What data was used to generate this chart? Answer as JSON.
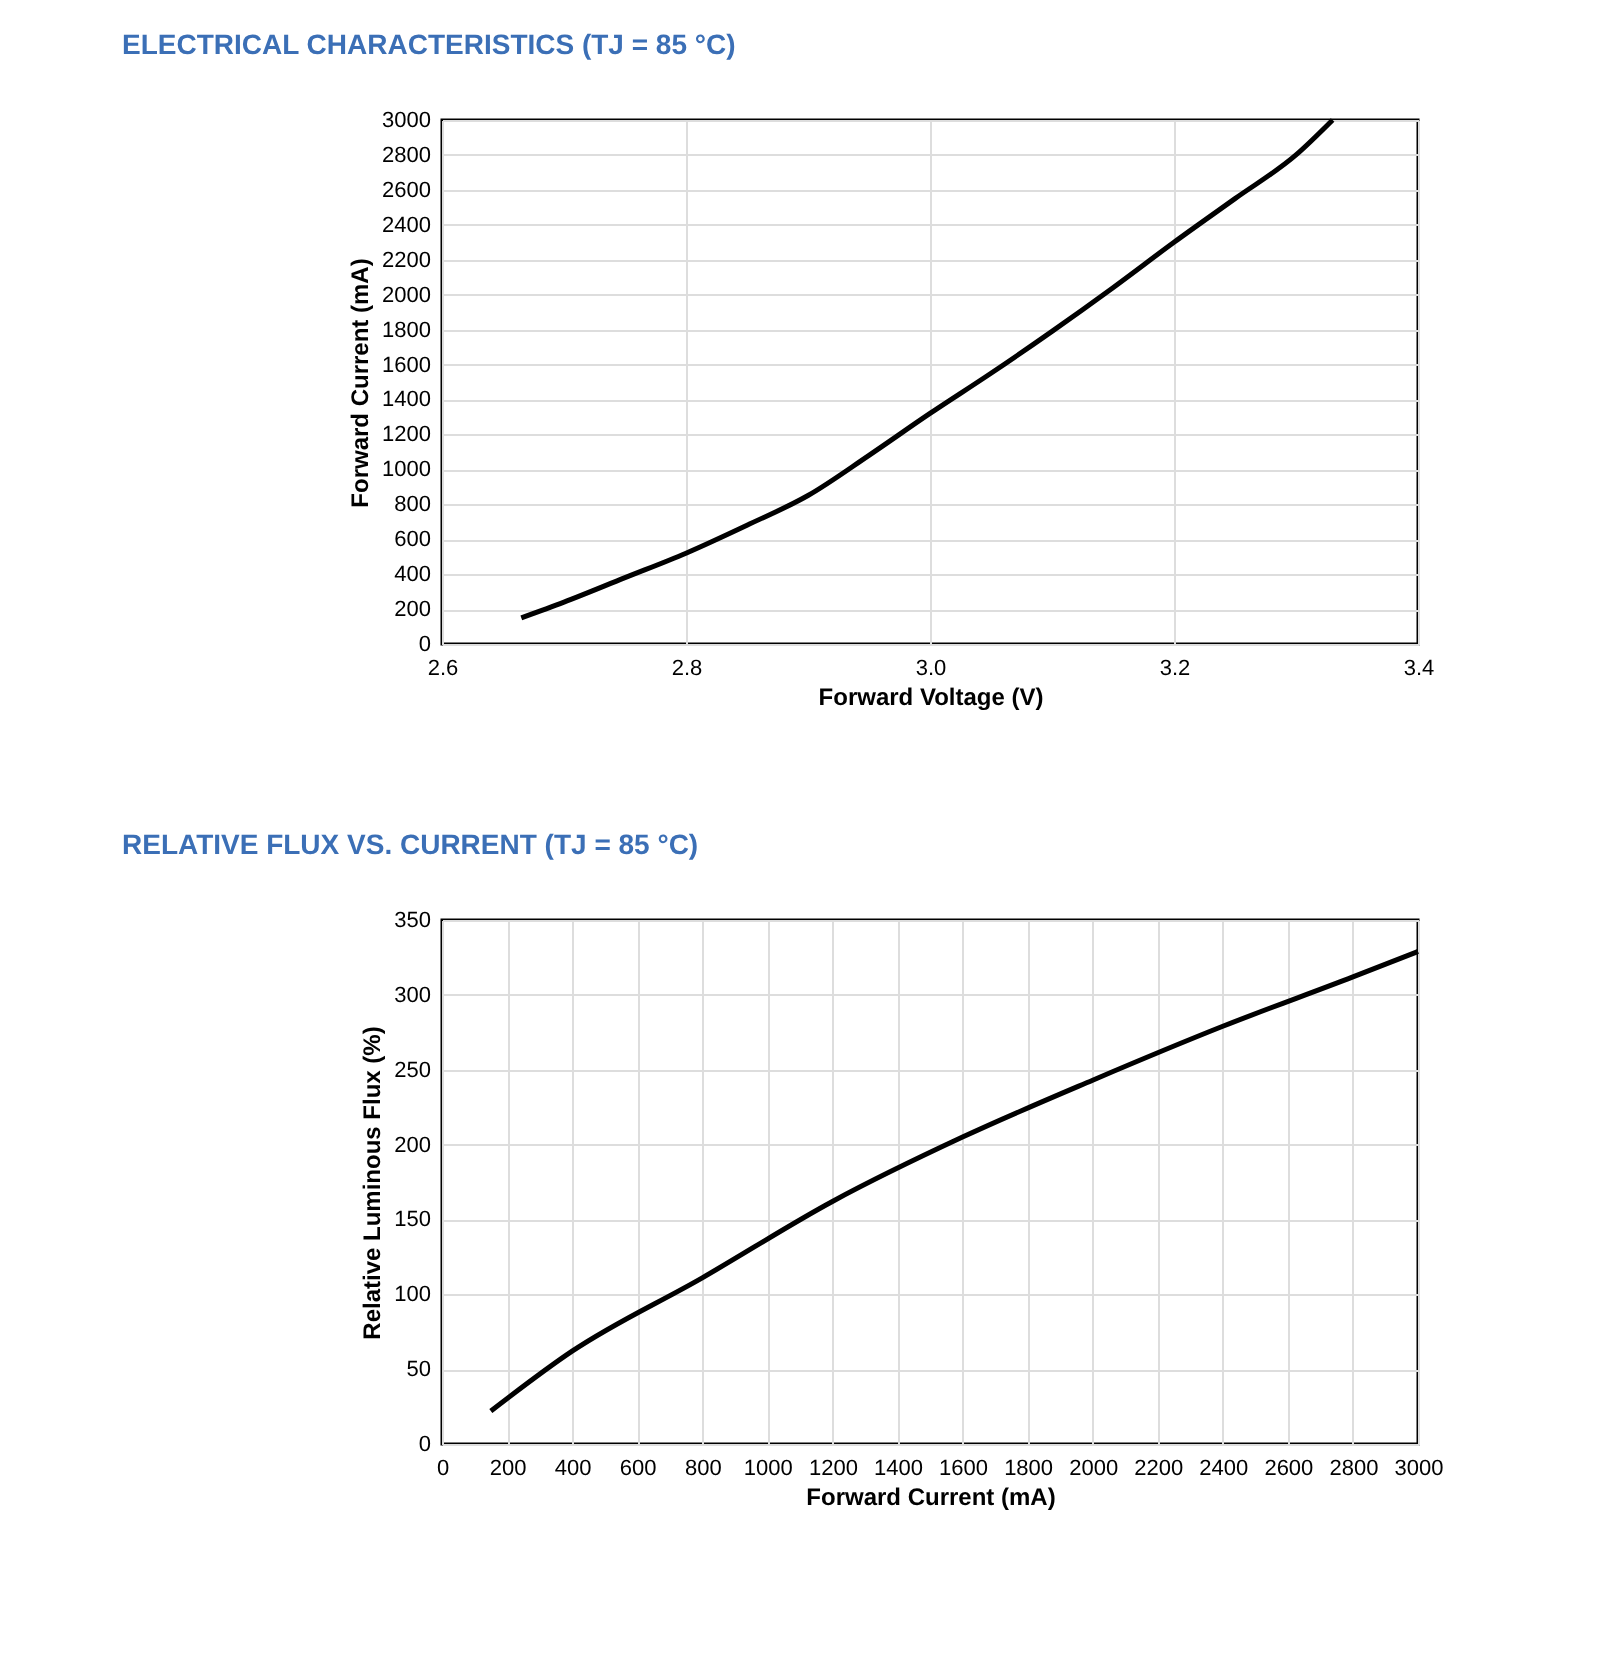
{
  "chart_data": [
    {
      "type": "line",
      "title": "ELECTRICAL CHARACTERISTICS (TJ = 85 °C)",
      "xlabel": "Forward Voltage (V)",
      "ylabel": "Forward Current (mA)",
      "xlim": [
        2.6,
        3.4
      ],
      "xticks": [
        {
          "value": 2.6,
          "label": "2.6"
        },
        {
          "value": 2.8,
          "label": "2.8"
        },
        {
          "value": 3.0,
          "label": "3.0"
        },
        {
          "value": 3.2,
          "label": "3.2"
        },
        {
          "value": 3.4,
          "label": "3.4"
        }
      ],
      "ylim": [
        0,
        3000
      ],
      "yticks": [
        0,
        200,
        400,
        600,
        800,
        1000,
        1200,
        1400,
        1600,
        1800,
        2000,
        2200,
        2400,
        2600,
        2800,
        3000
      ],
      "grid": true,
      "marker": "none",
      "line_style": "solid",
      "series": [
        {
          "color": "#000000",
          "x": [
            2.665,
            2.7,
            2.75,
            2.8,
            2.85,
            2.9,
            2.95,
            3.0,
            3.05,
            3.1,
            3.15,
            3.2,
            3.25,
            3.3,
            3.33
          ],
          "values": [
            150,
            240,
            380,
            520,
            680,
            850,
            1080,
            1320,
            1550,
            1790,
            2040,
            2300,
            2550,
            2800,
            3000
          ]
        }
      ]
    },
    {
      "type": "line",
      "title": "RELATIVE FLUX VS. CURRENT (TJ = 85 °C)",
      "xlabel": "Forward Current (mA)",
      "ylabel": "Relative Luminous Flux (%)",
      "xlim": [
        0,
        3000
      ],
      "xticks": [
        0,
        200,
        400,
        600,
        800,
        1000,
        1200,
        1400,
        1600,
        1800,
        2000,
        2200,
        2400,
        2600,
        2800,
        3000
      ],
      "ylim": [
        0,
        350
      ],
      "yticks": [
        0,
        50,
        100,
        150,
        200,
        250,
        300,
        350
      ],
      "grid": true,
      "marker": "none",
      "line_style": "solid",
      "series": [
        {
          "color": "#000000",
          "x": [
            150,
            400,
            800,
            1200,
            1600,
            2000,
            2400,
            2800,
            3000
          ],
          "values": [
            22,
            62,
            111,
            162,
            205,
            243,
            279,
            312,
            329
          ]
        }
      ]
    }
  ]
}
